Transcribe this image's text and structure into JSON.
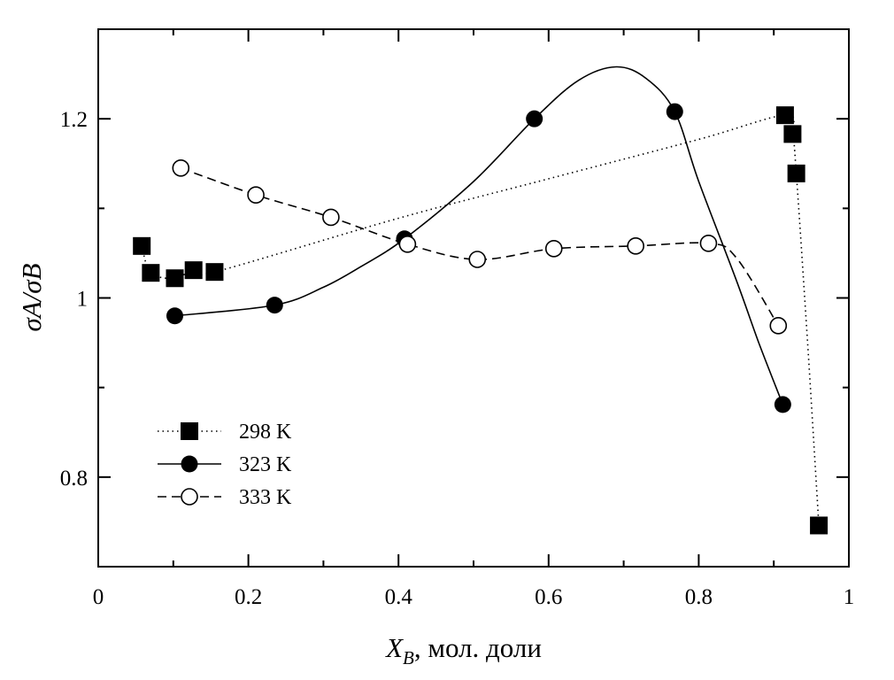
{
  "chart_data": {
    "type": "line",
    "title": "",
    "xlabel": {
      "main": "X",
      "sub": "B",
      "rest": ", мол. доли"
    },
    "ylabel": "σA/σB",
    "xlim": [
      0,
      1
    ],
    "ylim": [
      0.7,
      1.3
    ],
    "x_ticks": [
      {
        "v": 0,
        "label": "0"
      },
      {
        "v": 0.2,
        "label": "0.2"
      },
      {
        "v": 0.4,
        "label": "0.4"
      },
      {
        "v": 0.6,
        "label": "0.6"
      },
      {
        "v": 0.8,
        "label": "0.8"
      },
      {
        "v": 1,
        "label": "1"
      }
    ],
    "y_ticks": [
      {
        "v": 0.8,
        "label": "0.8"
      },
      {
        "v": 1.0,
        "label": "1"
      },
      {
        "v": 1.2,
        "label": "1.2"
      }
    ],
    "y_minor_ticks": [
      0.9,
      1.1
    ],
    "grid": false,
    "legend_position": "bottom-left",
    "series": [
      {
        "name": "298 K",
        "marker": "square-filled",
        "line": "dotted",
        "points": [
          [
            0.058,
            1.058
          ],
          [
            0.07,
            1.028
          ],
          [
            0.102,
            1.022
          ],
          [
            0.127,
            1.031
          ],
          [
            0.155,
            1.029
          ],
          [
            0.915,
            1.204
          ],
          [
            0.925,
            1.183
          ],
          [
            0.93,
            1.139
          ],
          [
            0.96,
            0.746
          ]
        ],
        "curve": [
          [
            0.058,
            1.058
          ],
          [
            0.07,
            1.028
          ],
          [
            0.102,
            1.022
          ],
          [
            0.127,
            1.031
          ],
          [
            0.155,
            1.029
          ],
          [
            0.4,
            1.089
          ],
          [
            0.6,
            1.133
          ],
          [
            0.8,
            1.177
          ],
          [
            0.915,
            1.204
          ],
          [
            0.925,
            1.183
          ],
          [
            0.93,
            1.139
          ],
          [
            0.945,
            0.95
          ],
          [
            0.96,
            0.746
          ]
        ]
      },
      {
        "name": "323 K",
        "marker": "circle-filled",
        "line": "solid",
        "points": [
          [
            0.102,
            0.98
          ],
          [
            0.235,
            0.992
          ],
          [
            0.408,
            1.066
          ],
          [
            0.581,
            1.2
          ],
          [
            0.768,
            1.208
          ],
          [
            0.912,
            0.881
          ]
        ],
        "curve": [
          [
            0.102,
            0.98
          ],
          [
            0.235,
            0.992
          ],
          [
            0.3,
            1.012
          ],
          [
            0.35,
            1.035
          ],
          [
            0.408,
            1.066
          ],
          [
            0.5,
            1.13
          ],
          [
            0.581,
            1.2
          ],
          [
            0.64,
            1.243
          ],
          [
            0.69,
            1.258
          ],
          [
            0.73,
            1.245
          ],
          [
            0.768,
            1.208
          ],
          [
            0.8,
            1.13
          ],
          [
            0.85,
            1.02
          ],
          [
            0.88,
            0.95
          ],
          [
            0.912,
            0.881
          ]
        ]
      },
      {
        "name": "333 K",
        "marker": "circle-open",
        "line": "dashed",
        "points": [
          [
            0.11,
            1.145
          ],
          [
            0.21,
            1.115
          ],
          [
            0.31,
            1.09
          ],
          [
            0.412,
            1.06
          ],
          [
            0.505,
            1.043
          ],
          [
            0.607,
            1.055
          ],
          [
            0.716,
            1.058
          ],
          [
            0.813,
            1.061
          ],
          [
            0.906,
            0.969
          ]
        ],
        "curve": [
          [
            0.11,
            1.145
          ],
          [
            0.21,
            1.115
          ],
          [
            0.31,
            1.09
          ],
          [
            0.412,
            1.06
          ],
          [
            0.505,
            1.043
          ],
          [
            0.607,
            1.055
          ],
          [
            0.716,
            1.058
          ],
          [
            0.813,
            1.061
          ],
          [
            0.85,
            1.045
          ],
          [
            0.906,
            0.969
          ]
        ]
      }
    ]
  }
}
